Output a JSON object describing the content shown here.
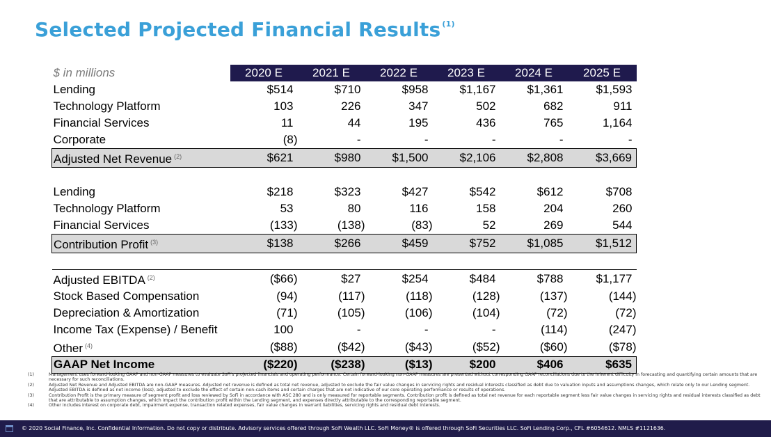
{
  "title": "Selected Projected Financial Results",
  "title_superscript": "(1)",
  "colors": {
    "title": "#3aa0d8",
    "header_bg": "#1f1a4d",
    "total_bg": "#d9d9d9",
    "footer_bg": "#201c4a"
  },
  "table": {
    "unit_label": "$ in millions",
    "years": [
      "2020 E",
      "2021 E",
      "2022 E",
      "2023 E",
      "2024 E",
      "2025 E"
    ],
    "sections": [
      {
        "rows": [
          {
            "label": "Lending",
            "values": [
              "$514",
              "$710",
              "$958",
              "$1,167",
              "$1,361",
              "$1,593"
            ]
          },
          {
            "label": "Technology Platform",
            "values": [
              "103",
              "226",
              "347",
              "502",
              "682",
              "911"
            ]
          },
          {
            "label": "Financial Services",
            "values": [
              "11",
              "44",
              "195",
              "436",
              "765",
              "1,164"
            ]
          },
          {
            "label": "Corporate",
            "values": [
              "(8)",
              "-",
              "-",
              "-",
              "-",
              "-"
            ]
          }
        ],
        "total": {
          "label": "Adjusted Net Revenue",
          "note": "(2)",
          "values": [
            "$621",
            "$980",
            "$1,500",
            "$2,106",
            "$2,808",
            "$3,669"
          ]
        }
      },
      {
        "rows": [
          {
            "label": "Lending",
            "values": [
              "$218",
              "$323",
              "$427",
              "$542",
              "$612",
              "$708"
            ]
          },
          {
            "label": "Technology Platform",
            "values": [
              "53",
              "80",
              "116",
              "158",
              "204",
              "260"
            ]
          },
          {
            "label": "Financial Services",
            "values": [
              "(133)",
              "(138)",
              "(83)",
              "52",
              "269",
              "544"
            ]
          }
        ],
        "total": {
          "label": "Contribution Profit",
          "note": "(3)",
          "values": [
            "$138",
            "$266",
            "$459",
            "$752",
            "$1,085",
            "$1,512"
          ]
        }
      },
      {
        "lead": {
          "label": "Adjusted EBITDA",
          "note": "(2)",
          "values": [
            "($66)",
            "$27",
            "$254",
            "$484",
            "$788",
            "$1,177"
          ]
        },
        "rows": [
          {
            "label": "Stock Based Compensation",
            "values": [
              "(94)",
              "(117)",
              "(118)",
              "(128)",
              "(137)",
              "(144)"
            ]
          },
          {
            "label": "Depreciation & Amortization",
            "values": [
              "(71)",
              "(105)",
              "(106)",
              "(104)",
              "(72)",
              "(72)"
            ]
          },
          {
            "label": "Income Tax (Expense) / Benefit",
            "values": [
              "100",
              "-",
              "-",
              "-",
              "(114)",
              "(247)"
            ]
          },
          {
            "label": "Other",
            "note": "(4)",
            "values": [
              "($88)",
              "($42)",
              "($43)",
              "($52)",
              "($60)",
              "($78)"
            ]
          }
        ],
        "total": {
          "label": "GAAP Net Income",
          "values": [
            "($220)",
            "($238)",
            "($13)",
            "$200",
            "$406",
            "$635"
          ]
        }
      }
    ]
  },
  "footnotes": [
    {
      "mark": "(1)",
      "text": "Management uses forward-looking GAAP and non-GAAP measures to evaluate SoFi's projected financials and operating performance. Certain forward-looking non-GAAP measures are presented without corresponding GAAP reconciliations due to the inherent difficulty in forecasting and quantifying certain amounts that are necessary for such reconciliations."
    },
    {
      "mark": "(2)",
      "text": "Adjusted Net Revenue and Adjusted EBITDA are non-GAAP measures. Adjusted net revenue is defined as total net revenue, adjusted to exclude the fair value changes in servicing rights and residual interests classified as debt due to valuation inputs and assumptions changes, which relate only to our Lending segment. Adjusted EBITDA is defined as net income (loss), adjusted to exclude the effect of certain non-cash items and certain charges that are not indicative of our core operating performance or results of operations."
    },
    {
      "mark": "(3)",
      "text": "Contribution Profit is the primary measure of segment profit and loss reviewed by SoFi in accordance with ASC 280 and is only measured for reportable segments. Contribution profit is defined as total net revenue for each reportable segment less fair value changes in servicing rights and residual interests classified as debt that are attributable to assumption changes, which impact the contribution profit within the Lending segment, and expenses directly attributable to the corresponding reportable segment."
    },
    {
      "mark": "(4)",
      "text": "Other includes interest on corporate debt, impairment expense, transaction related expenses, fair value changes in warrant liabilities, servicing rights and residual debt interests."
    }
  ],
  "footer": {
    "icon": "document-icon",
    "text": "© 2020 Social Finance, Inc. Confidential Information. Do not copy or distribute. Advisory services offered through SoFi Wealth LLC. SoFi Money® is offered through SoFi Securities LLC. SoFi Lending Corp., CFL #6054612. NMLS #1121636."
  }
}
